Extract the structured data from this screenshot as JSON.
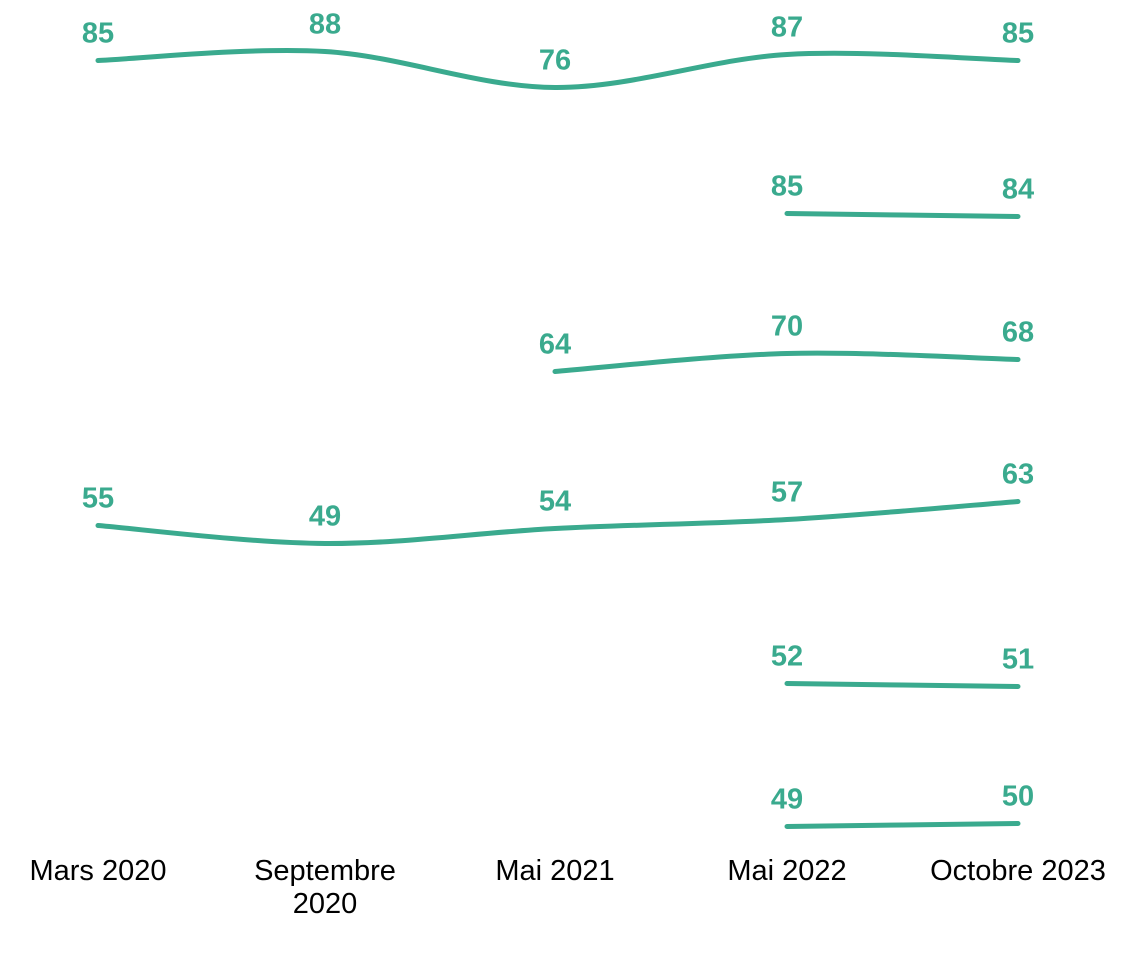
{
  "chart_data": {
    "type": "line",
    "title": "",
    "xlabel": "",
    "ylabel": "",
    "categories": [
      "Mars 2020",
      "Septembre 2020",
      "Mai 2021",
      "Mai 2022",
      "Octobre 2023"
    ],
    "category_lines": [
      [
        "Mars 2020"
      ],
      [
        "Septembre",
        "2020"
      ],
      [
        "Mai 2021"
      ],
      [
        "Mai 2022"
      ],
      [
        "Octobre 2023"
      ]
    ],
    "series": [
      {
        "values": [
          85,
          88,
          76,
          87,
          85
        ]
      },
      {
        "values": [
          null,
          null,
          null,
          85,
          84
        ]
      },
      {
        "values": [
          null,
          null,
          64,
          70,
          68
        ]
      },
      {
        "values": [
          55,
          49,
          54,
          57,
          63
        ]
      },
      {
        "values": [
          null,
          null,
          null,
          52,
          51
        ]
      },
      {
        "values": [
          null,
          null,
          null,
          49,
          50
        ]
      }
    ],
    "grid": false,
    "legend": "none",
    "colors": {
      "line": "#3aaa8e",
      "label": "#3aaa8e",
      "tick_text": "#000000"
    }
  }
}
